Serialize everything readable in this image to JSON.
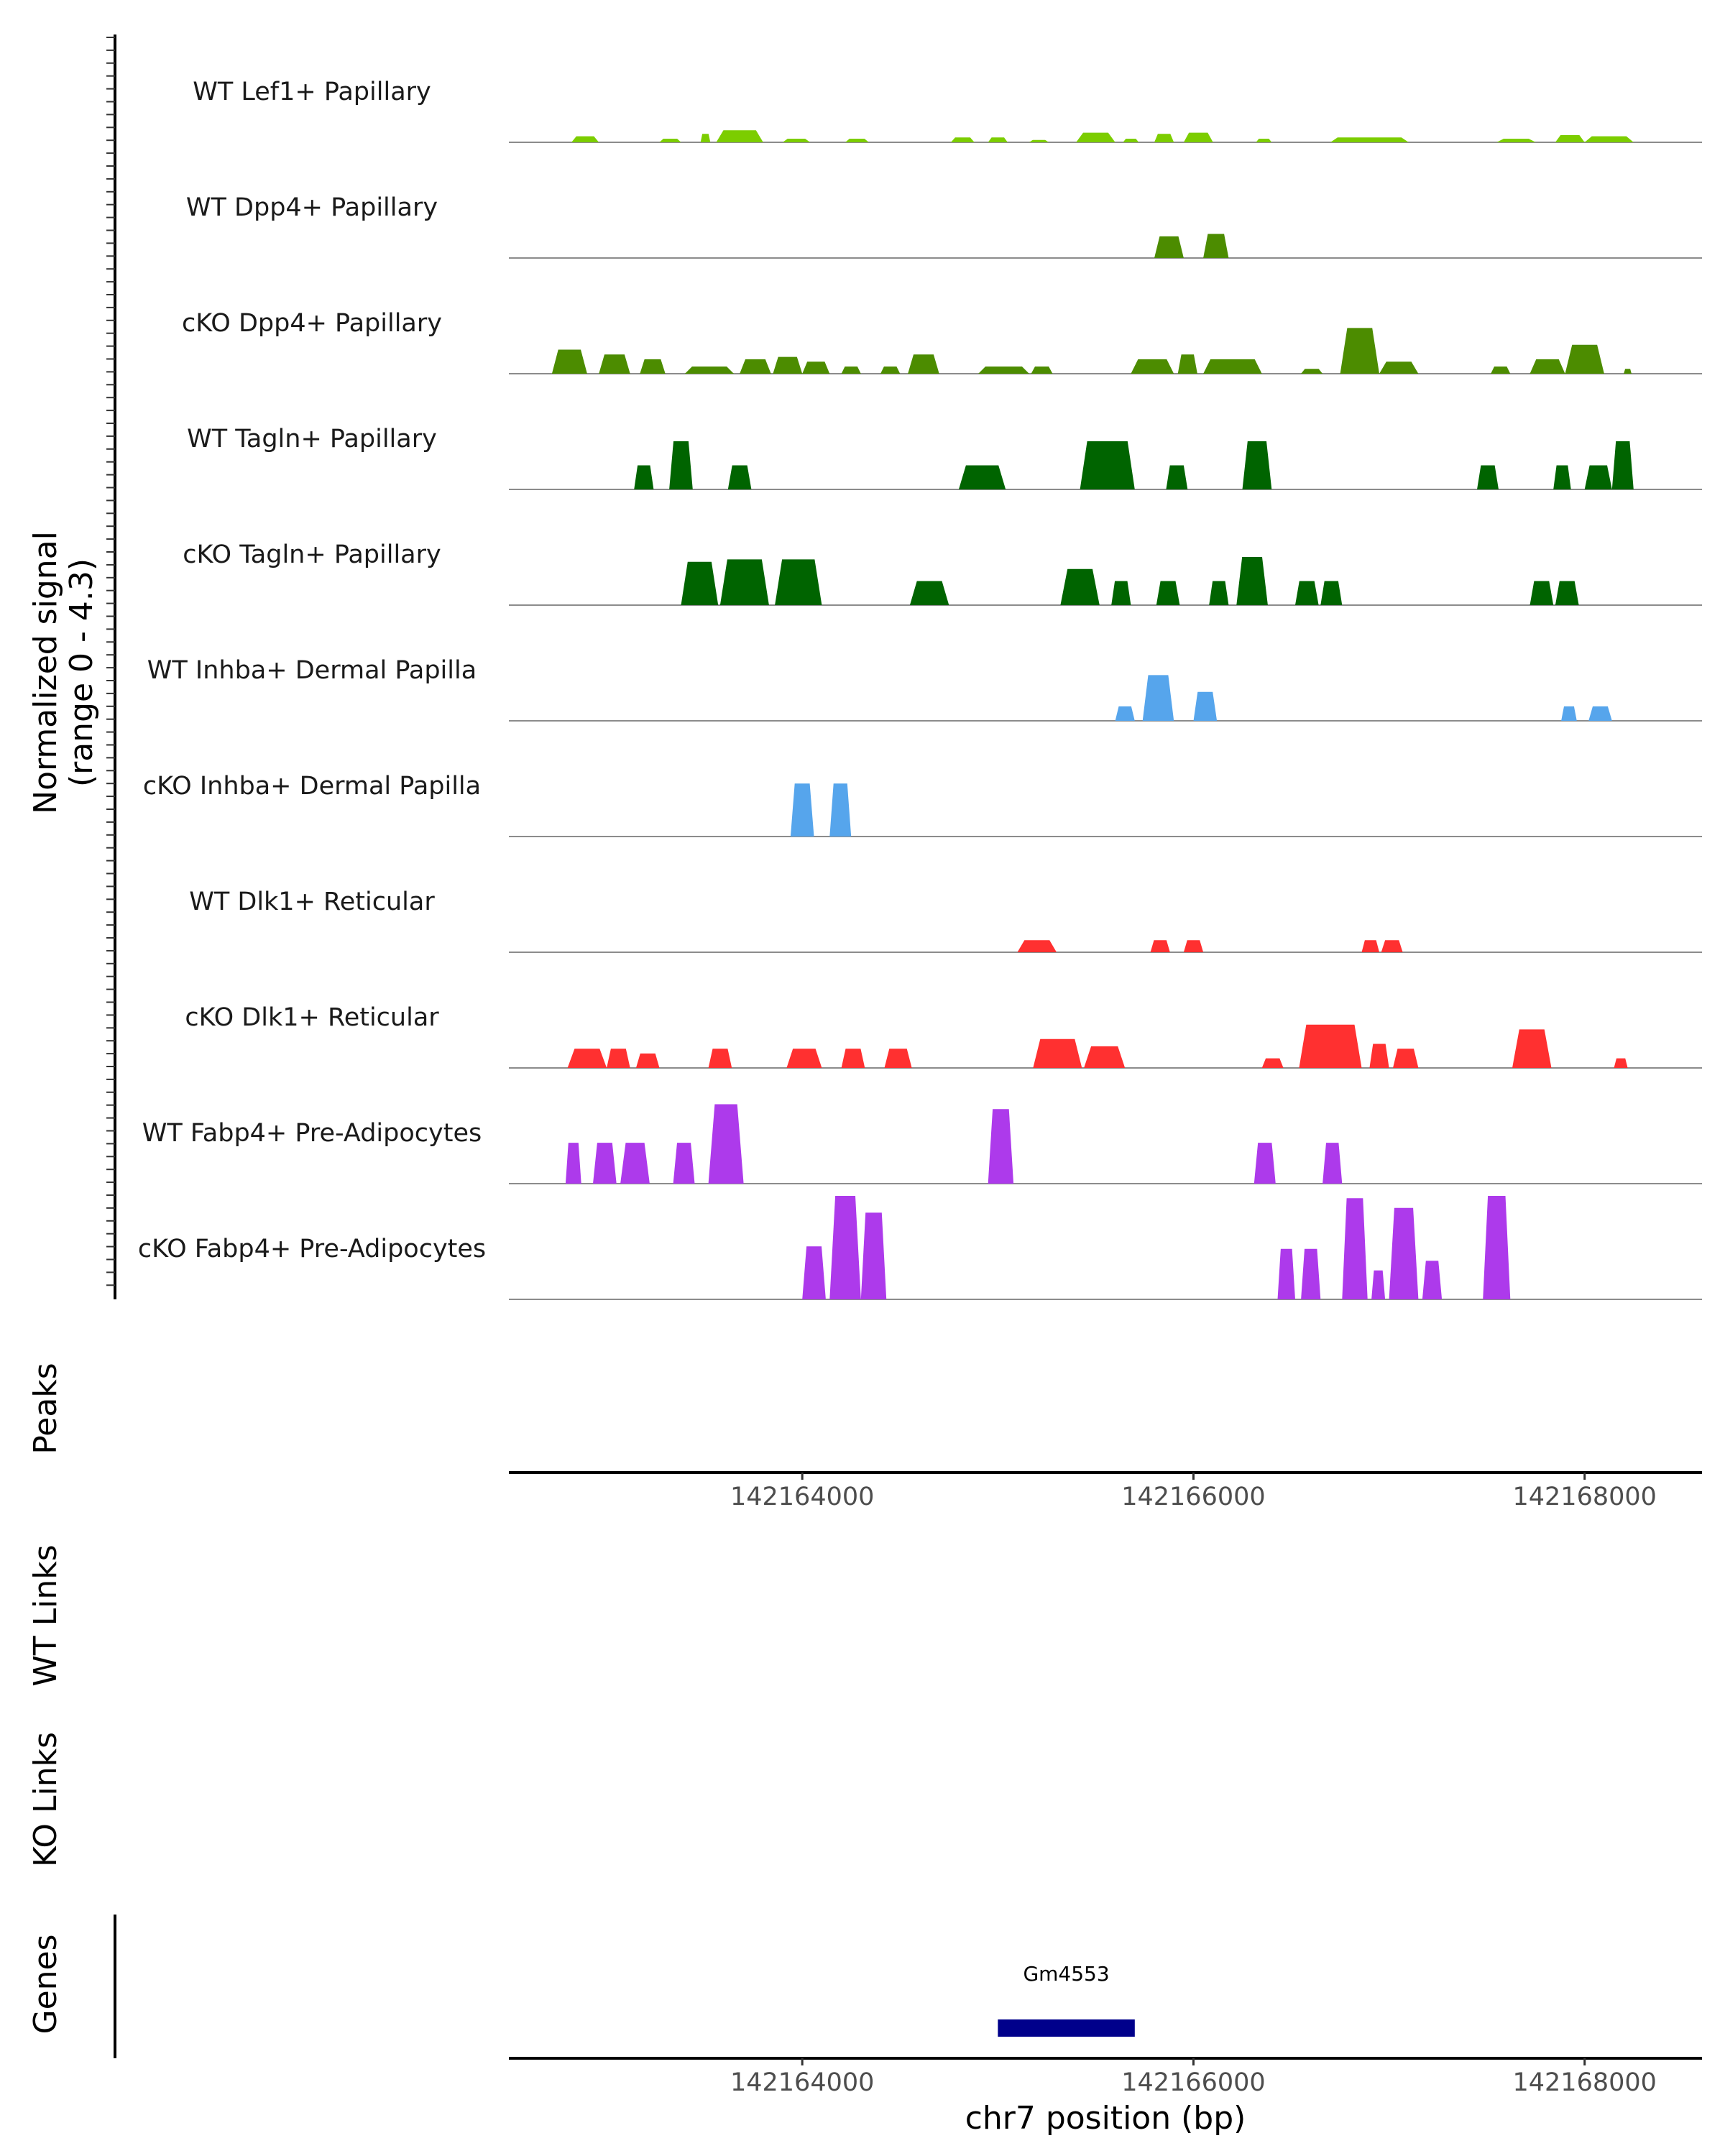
{
  "chart_data": {
    "type": "area",
    "title": "",
    "chromosome": "chr7",
    "xlabel": "chr7 position (bp)",
    "xlim": [
      142162500,
      142168600
    ],
    "xticks": [
      142164000,
      142166000,
      142168000
    ],
    "xtick_labels": [
      "142164000",
      "142166000",
      "142168000"
    ],
    "ylabel_line1": "Normalized signal",
    "ylabel_line2": "(range 0 - 4.3)",
    "yrange": [
      0,
      4.3
    ],
    "panels": {
      "peaks": "Peaks",
      "wt_links": "WT Links",
      "ko_links": "KO Links",
      "genes": "Genes"
    },
    "genes": [
      {
        "name": "Gm4553",
        "start": 142165000,
        "end": 142165700,
        "color": "#00008B"
      }
    ],
    "tracks": [
      {
        "name": "WT Lef1+ Papillary",
        "color": "#7CCD00",
        "peaks": [
          [
            142162820,
            142162960,
            0.25
          ],
          [
            142163270,
            142163380,
            0.15
          ],
          [
            142163480,
            142163530,
            0.35
          ],
          [
            142163560,
            142163800,
            0.5
          ],
          [
            142163900,
            142164040,
            0.15
          ],
          [
            142164220,
            142164340,
            0.15
          ],
          [
            142164760,
            142164880,
            0.2
          ],
          [
            142164950,
            142165050,
            0.2
          ],
          [
            142165160,
            142165260,
            0.1
          ],
          [
            142165400,
            142165600,
            0.4
          ],
          [
            142165640,
            142165720,
            0.15
          ],
          [
            142165800,
            142165900,
            0.35
          ],
          [
            142165950,
            142166100,
            0.4
          ],
          [
            142166320,
            142166400,
            0.15
          ],
          [
            142166700,
            142167100,
            0.2
          ],
          [
            142167550,
            142167750,
            0.15
          ],
          [
            142167850,
            142168000,
            0.3
          ],
          [
            142168000,
            142168250,
            0.25
          ]
        ]
      },
      {
        "name": "WT Dpp4+ Papillary",
        "color": "#4C8C00",
        "peaks": [
          [
            142165800,
            142165950,
            0.9
          ],
          [
            142166050,
            142166180,
            1.0
          ]
        ]
      },
      {
        "name": "cKO Dpp4+ Papillary",
        "color": "#4C8C00",
        "peaks": [
          [
            142162720,
            142162900,
            1.0
          ],
          [
            142162960,
            142163120,
            0.8
          ],
          [
            142163170,
            142163300,
            0.6
          ],
          [
            142163400,
            142163650,
            0.3
          ],
          [
            142163680,
            142163840,
            0.6
          ],
          [
            142163850,
            142164000,
            0.7
          ],
          [
            142164000,
            142164140,
            0.5
          ],
          [
            142164200,
            142164300,
            0.3
          ],
          [
            142164400,
            142164500,
            0.3
          ],
          [
            142164540,
            142164700,
            0.8
          ],
          [
            142164900,
            142165160,
            0.3
          ],
          [
            142165170,
            142165280,
            0.3
          ],
          [
            142165680,
            142165900,
            0.6
          ],
          [
            142165920,
            142166020,
            0.8
          ],
          [
            142166050,
            142166350,
            0.6
          ],
          [
            142166550,
            142166660,
            0.2
          ],
          [
            142166750,
            142166950,
            1.9
          ],
          [
            142166950,
            142167150,
            0.5
          ],
          [
            142167520,
            142167620,
            0.3
          ],
          [
            142167720,
            142167900,
            0.6
          ],
          [
            142167900,
            142168100,
            1.2
          ],
          [
            142168200,
            142168240,
            0.2
          ]
        ]
      },
      {
        "name": "WT Tagln+ Papillary",
        "color": "#006400",
        "peaks": [
          [
            142163140,
            142163240,
            1.0
          ],
          [
            142163320,
            142163440,
            2.0
          ],
          [
            142163620,
            142163740,
            1.0
          ],
          [
            142164800,
            142165040,
            1.0
          ],
          [
            142165420,
            142165700,
            2.0
          ],
          [
            142165860,
            142165970,
            1.0
          ],
          [
            142166250,
            142166400,
            2.0
          ],
          [
            142167450,
            142167560,
            1.0
          ],
          [
            142167840,
            142167930,
            1.0
          ],
          [
            142168000,
            142168140,
            1.0
          ],
          [
            142168140,
            142168250,
            2.0
          ]
        ]
      },
      {
        "name": "cKO Tagln+ Papillary",
        "color": "#006400",
        "peaks": [
          [
            142163380,
            142163570,
            1.8
          ],
          [
            142163580,
            142163830,
            1.9
          ],
          [
            142163860,
            142164100,
            1.9
          ],
          [
            142164550,
            142164750,
            1.0
          ],
          [
            142165320,
            142165520,
            1.5
          ],
          [
            142165580,
            142165680,
            1.0
          ],
          [
            142165810,
            142165930,
            1.0
          ],
          [
            142166080,
            142166180,
            1.0
          ],
          [
            142166220,
            142166380,
            2.0
          ],
          [
            142166520,
            142166640,
            1.0
          ],
          [
            142166650,
            142166760,
            1.0
          ],
          [
            142167720,
            142167840,
            1.0
          ],
          [
            142167850,
            142167970,
            1.0
          ]
        ]
      },
      {
        "name": "WT Inhba+ Dermal Papilla",
        "color": "#56A5EC",
        "peaks": [
          [
            142165600,
            142165700,
            0.6
          ],
          [
            142165740,
            142165900,
            1.9
          ],
          [
            142166000,
            142166120,
            1.2
          ],
          [
            142167880,
            142167960,
            0.6
          ],
          [
            142168020,
            142168140,
            0.6
          ]
        ]
      },
      {
        "name": "cKO Inhba+ Dermal Papilla",
        "color": "#56A5EC",
        "peaks": [
          [
            142163940,
            142164060,
            2.2
          ],
          [
            142164140,
            142164250,
            2.2
          ]
        ]
      },
      {
        "name": "WT Dlk1+ Reticular",
        "color": "#FF3030",
        "peaks": [
          [
            142165100,
            142165300,
            0.5
          ],
          [
            142165780,
            142165880,
            0.5
          ],
          [
            142165950,
            142166050,
            0.5
          ],
          [
            142166860,
            142166950,
            0.5
          ],
          [
            142166960,
            142167070,
            0.5
          ]
        ]
      },
      {
        "name": "cKO Dlk1+ Reticular",
        "color": "#FF3030",
        "peaks": [
          [
            142162800,
            142163000,
            0.8
          ],
          [
            142163000,
            142163120,
            0.8
          ],
          [
            142163150,
            142163270,
            0.6
          ],
          [
            142163520,
            142163640,
            0.8
          ],
          [
            142163920,
            142164100,
            0.8
          ],
          [
            142164200,
            142164320,
            0.8
          ],
          [
            142164420,
            142164560,
            0.8
          ],
          [
            142165180,
            142165430,
            1.2
          ],
          [
            142165440,
            142165650,
            0.9
          ],
          [
            142166350,
            142166460,
            0.4
          ],
          [
            142166540,
            142166860,
            1.8
          ],
          [
            142166900,
            142167000,
            1.0
          ],
          [
            142167020,
            142167150,
            0.8
          ],
          [
            142167630,
            142167830,
            1.6
          ],
          [
            142168150,
            142168220,
            0.4
          ]
        ]
      },
      {
        "name": "WT Fabp4+ Pre-Adipocytes",
        "color": "#AD3AEB",
        "peaks": [
          [
            142162790,
            142162870,
            1.7
          ],
          [
            142162930,
            142163050,
            1.7
          ],
          [
            142163070,
            142163220,
            1.7
          ],
          [
            142163340,
            142163450,
            1.7
          ],
          [
            142163520,
            142163700,
            3.3
          ],
          [
            142164950,
            142165080,
            3.1
          ],
          [
            142166310,
            142166420,
            1.7
          ],
          [
            142166660,
            142166760,
            1.7
          ]
        ]
      },
      {
        "name": "cKO Fabp4+ Pre-Adipocytes",
        "color": "#AD3AEB",
        "peaks": [
          [
            142164000,
            142164120,
            2.2
          ],
          [
            142164140,
            142164300,
            4.3
          ],
          [
            142164300,
            142164430,
            3.6
          ],
          [
            142166430,
            142166520,
            2.1
          ],
          [
            142166550,
            142166650,
            2.1
          ],
          [
            142166760,
            142166890,
            4.2
          ],
          [
            142166910,
            142166980,
            1.2
          ],
          [
            142167000,
            142167150,
            3.8
          ],
          [
            142167170,
            142167270,
            1.6
          ],
          [
            142167480,
            142167620,
            4.3
          ]
        ]
      }
    ]
  }
}
